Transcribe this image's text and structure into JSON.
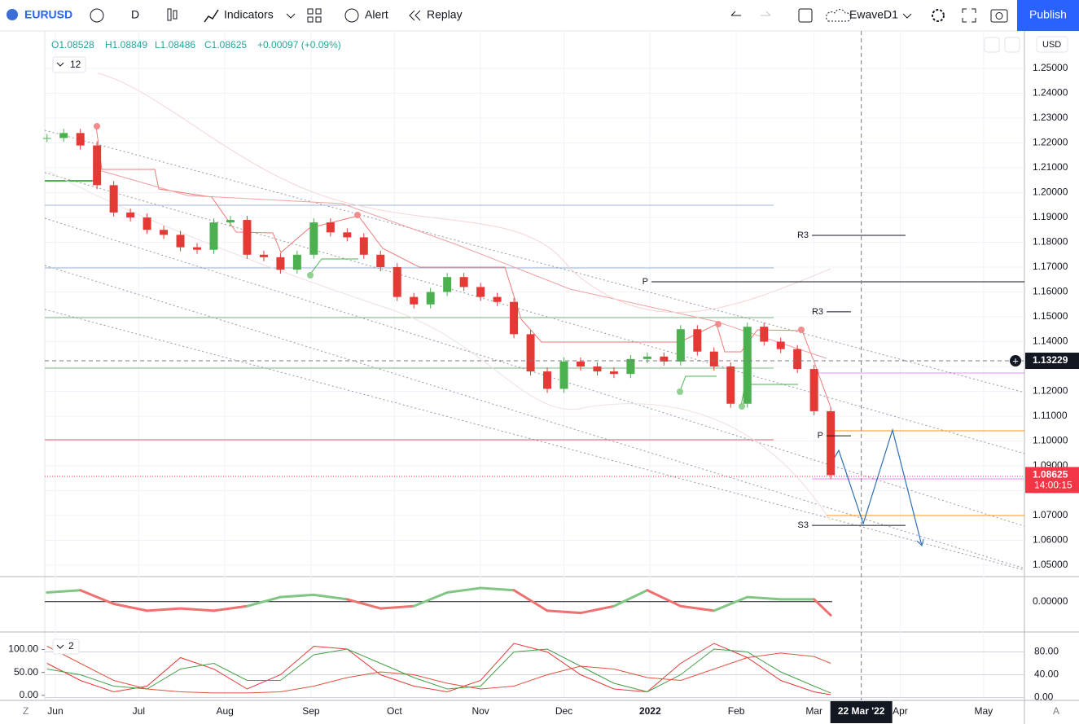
{
  "toolbar": {
    "symbol": "EURUSD",
    "interval": "D",
    "indicators": "Indicators",
    "alert": "Alert",
    "replay": "Replay",
    "layout": "EwaveD1",
    "publish": "Publish"
  },
  "legend": {
    "open": "O1.08528",
    "high": "H1.08849",
    "low": "L1.08486",
    "close": "C1.08625",
    "change": "+0.00097 (+0.09%)",
    "studies_count": "12",
    "pane_count": "2"
  },
  "chart_data": {
    "type": "candlestick",
    "currency": "USD",
    "x": [
      -3,
      3,
      9,
      15,
      21,
      27,
      33,
      39,
      45,
      51,
      57,
      63,
      69,
      75,
      81,
      87,
      93,
      99,
      105,
      111,
      117,
      123,
      129,
      135,
      141,
      147,
      153,
      159,
      165,
      171,
      177,
      183,
      189,
      195,
      201,
      207,
      213,
      219,
      225,
      231,
      237,
      243,
      249,
      255,
      261,
      267,
      273,
      279
    ],
    "closes": [
      1.222,
      1.224,
      1.219,
      1.203,
      1.192,
      1.19,
      1.185,
      1.183,
      1.178,
      1.177,
      1.188,
      1.189,
      1.175,
      1.174,
      1.169,
      1.175,
      1.188,
      1.184,
      1.182,
      1.175,
      1.17,
      1.158,
      1.155,
      1.16,
      1.166,
      1.162,
      1.158,
      1.156,
      1.143,
      1.128,
      1.121,
      1.132,
      1.13,
      1.128,
      1.127,
      1.133,
      1.134,
      1.132,
      1.145,
      1.136,
      1.13,
      1.115,
      1.146,
      1.14,
      1.137,
      1.129,
      1.112,
      1.08625
    ],
    "up_color": "#4caf50",
    "down_color": "#e53935",
    "xlim": [
      -3.8,
      348.7
    ],
    "xticks": [
      {
        "value": 0,
        "label": "Jun"
      },
      {
        "value": 30,
        "label": "Jul"
      },
      {
        "value": 61,
        "label": "Aug"
      },
      {
        "value": 92,
        "label": "Sep"
      },
      {
        "value": 122,
        "label": "Oct"
      },
      {
        "value": 153,
        "label": "Nov"
      },
      {
        "value": 183,
        "label": "Dec"
      },
      {
        "value": 214,
        "label": "2022"
      },
      {
        "value": 245,
        "label": "Feb"
      },
      {
        "value": 273,
        "label": "Mar"
      },
      {
        "value": 304,
        "label": "Apr"
      },
      {
        "value": 334,
        "label": "May"
      }
    ],
    "ylim": [
      1.0454,
      1.2651
    ],
    "yticks": [
      {
        "value": 1.05,
        "label": "1.05000"
      },
      {
        "value": 1.06,
        "label": "1.06000"
      },
      {
        "value": 1.07,
        "label": "1.07000"
      },
      {
        "value": 1.08,
        "label": "1.08000"
      },
      {
        "value": 1.09,
        "label": "1.09000"
      },
      {
        "value": 1.1,
        "label": "1.10000"
      },
      {
        "value": 1.11,
        "label": "1.11000"
      },
      {
        "value": 1.12,
        "label": "1.12000"
      },
      {
        "value": 1.13,
        "label": "1.13000"
      },
      {
        "value": 1.14,
        "label": "1.14000"
      },
      {
        "value": 1.15,
        "label": "1.15000"
      },
      {
        "value": 1.16,
        "label": "1.16000"
      },
      {
        "value": 1.17,
        "label": "1.17000"
      },
      {
        "value": 1.18,
        "label": "1.18000"
      },
      {
        "value": 1.19,
        "label": "1.19000"
      },
      {
        "value": 1.2,
        "label": "1.20000"
      },
      {
        "value": 1.21,
        "label": "1.21000"
      },
      {
        "value": 1.22,
        "label": "1.22000"
      },
      {
        "value": 1.23,
        "label": "1.23000"
      },
      {
        "value": 1.24,
        "label": "1.24000"
      },
      {
        "value": 1.25,
        "label": "1.25000"
      }
    ],
    "grid": true,
    "last_price": {
      "value": 1.08625,
      "label": "1.08625",
      "countdown": "14:00:15"
    },
    "crosshair": {
      "value": 1.13229,
      "label": "1.13229",
      "x": 290,
      "date": "22 Mar '22"
    },
    "levels": [
      {
        "label": "R3",
        "value": 1.1828
      },
      {
        "label": "P",
        "value": 1.1641
      },
      {
        "label": "R3",
        "value": 1.152
      },
      {
        "label": "P",
        "value": 1.1021
      },
      {
        "label": "S3",
        "value": 1.066
      }
    ],
    "oscillator": {
      "x": [
        -3,
        9,
        21,
        33,
        45,
        57,
        69,
        81,
        93,
        105,
        117,
        129,
        141,
        153,
        165,
        177,
        189,
        201,
        213,
        225,
        237,
        249,
        261,
        273,
        279
      ],
      "values": [
        0.02,
        0.025,
        -0.005,
        -0.02,
        -0.015,
        -0.02,
        -0.01,
        0.01,
        0.015,
        0.005,
        -0.015,
        -0.01,
        0.02,
        0.03,
        0.025,
        -0.02,
        -0.025,
        -0.01,
        0.025,
        -0.01,
        -0.02,
        0.01,
        0.005,
        0.005,
        -0.03
      ],
      "ylim": [
        -0.065,
        0.055
      ],
      "yticks": [
        {
          "value": 0,
          "label": "0.00000"
        }
      ]
    },
    "stochastic": {
      "x": [
        -3,
        9,
        21,
        33,
        45,
        57,
        69,
        81,
        93,
        105,
        117,
        129,
        141,
        153,
        165,
        177,
        189,
        201,
        213,
        225,
        237,
        249,
        261,
        273,
        279
      ],
      "series": [
        {
          "color": "#e53935",
          "values": [
            60,
            30,
            10,
            20,
            70,
            50,
            15,
            40,
            90,
            85,
            40,
            20,
            10,
            30,
            95,
            80,
            40,
            15,
            10,
            60,
            95,
            70,
            30,
            10,
            5
          ]
        },
        {
          "color": "#43a047",
          "values": [
            50,
            40,
            20,
            15,
            50,
            60,
            30,
            30,
            75,
            85,
            60,
            35,
            15,
            20,
            80,
            85,
            55,
            25,
            10,
            40,
            85,
            80,
            45,
            20,
            8
          ]
        },
        {
          "color": "#e0533f",
          "values": [
            90,
            60,
            30,
            15,
            10,
            8,
            8,
            10,
            20,
            35,
            45,
            40,
            25,
            15,
            20,
            40,
            55,
            50,
            35,
            30,
            50,
            70,
            78,
            72,
            60
          ]
        }
      ],
      "ylim": [
        -5,
        115
      ],
      "yticks": [
        {
          "value": 0,
          "label": "0.00"
        },
        {
          "value": 40,
          "label": "40.00"
        },
        {
          "value": 80,
          "label": "80.00"
        }
      ],
      "left_ylim": [
        -11,
        138
      ],
      "left_yticks": [
        {
          "value": 0,
          "label": "0.00"
        },
        {
          "value": 50,
          "label": "50.00"
        },
        {
          "value": 100,
          "label": "100.00"
        }
      ]
    },
    "corner_left": "Z",
    "corner_right": "A"
  }
}
